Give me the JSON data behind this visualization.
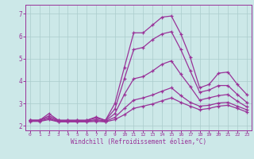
{
  "xlabel": "Windchill (Refroidissement éolien,°C)",
  "bg_color": "#cce8e8",
  "line_color": "#993399",
  "grid_color": "#aacccc",
  "xlim": [
    -0.5,
    23.5
  ],
  "ylim": [
    1.8,
    7.4
  ],
  "xticks": [
    0,
    1,
    2,
    3,
    4,
    5,
    6,
    7,
    8,
    9,
    10,
    11,
    12,
    13,
    14,
    15,
    16,
    17,
    18,
    19,
    20,
    21,
    22,
    23
  ],
  "yticks": [
    2,
    3,
    4,
    5,
    6,
    7
  ],
  "lines": [
    [
      2.25,
      2.25,
      2.55,
      2.25,
      2.25,
      2.25,
      2.25,
      2.4,
      2.25,
      3.0,
      4.6,
      6.15,
      6.15,
      6.5,
      6.85,
      6.9,
      6.1,
      5.05,
      3.7,
      3.85,
      4.35,
      4.4,
      3.85,
      3.4
    ],
    [
      2.25,
      2.25,
      2.45,
      2.25,
      2.25,
      2.25,
      2.25,
      2.35,
      2.25,
      2.75,
      4.1,
      5.4,
      5.5,
      5.85,
      6.1,
      6.2,
      5.4,
      4.45,
      3.5,
      3.6,
      3.8,
      3.8,
      3.4,
      3.05
    ],
    [
      2.25,
      2.25,
      2.38,
      2.22,
      2.22,
      2.22,
      2.22,
      2.28,
      2.22,
      2.55,
      3.4,
      4.1,
      4.2,
      4.45,
      4.75,
      4.9,
      4.3,
      3.75,
      3.15,
      3.25,
      3.35,
      3.4,
      3.1,
      2.85
    ],
    [
      2.22,
      2.22,
      2.32,
      2.2,
      2.2,
      2.2,
      2.2,
      2.24,
      2.2,
      2.38,
      2.78,
      3.15,
      3.25,
      3.38,
      3.55,
      3.7,
      3.35,
      3.05,
      2.88,
      2.92,
      3.02,
      3.05,
      2.88,
      2.72
    ],
    [
      2.2,
      2.2,
      2.28,
      2.18,
      2.18,
      2.18,
      2.18,
      2.2,
      2.18,
      2.28,
      2.5,
      2.78,
      2.88,
      2.98,
      3.12,
      3.25,
      3.05,
      2.88,
      2.72,
      2.78,
      2.88,
      2.92,
      2.78,
      2.62
    ]
  ]
}
